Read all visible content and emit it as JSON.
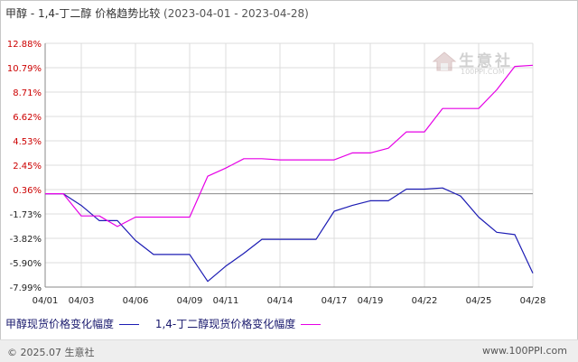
{
  "title": {
    "main": "甲醇 - 1,4-丁二醇 价格趋势比较",
    "dates": "(2023-04-01 - 2023-04-28)"
  },
  "chart_data": {
    "type": "line",
    "x": [
      "04/01",
      "04/02",
      "04/03",
      "04/04",
      "04/05",
      "04/06",
      "04/07",
      "04/08",
      "04/09",
      "04/10",
      "04/11",
      "04/12",
      "04/13",
      "04/14",
      "04/15",
      "04/16",
      "04/17",
      "04/18",
      "04/19",
      "04/20",
      "04/21",
      "04/22",
      "04/23",
      "04/24",
      "04/25",
      "04/26",
      "04/27",
      "04/28"
    ],
    "x_tick_labels": [
      "04/01",
      "04/03",
      "04/06",
      "04/09",
      "04/11",
      "04/14",
      "04/17",
      "04/19",
      "04/22",
      "04/25",
      "04/28"
    ],
    "y_tick_labels": [
      "12.88%",
      "10.79%",
      "8.71%",
      "6.62%",
      "4.53%",
      "2.45%",
      "0.36%",
      "-1.73%",
      "-3.82%",
      "-5.90%",
      "-7.99%"
    ],
    "ylim": [
      -7.99,
      12.88
    ],
    "grid": true,
    "legend_position": "bottom-left",
    "series": [
      {
        "name": "甲醇现货价格变化幅度",
        "color": "#1c1cb4",
        "values": [
          0,
          0,
          -1.0,
          -2.3,
          -2.3,
          -4.0,
          -5.2,
          -5.2,
          -5.2,
          -7.5,
          -6.2,
          -5.1,
          -3.9,
          -3.9,
          -3.9,
          -3.9,
          -1.5,
          -1.0,
          -0.6,
          -0.6,
          0.4,
          0.4,
          0.5,
          -0.2,
          -2.0,
          -3.3,
          -3.5,
          -6.8
        ]
      },
      {
        "name": "1,4-丁二醇现货价格变化幅度",
        "color": "#e600e6",
        "values": [
          0,
          0,
          -1.9,
          -1.9,
          -2.8,
          -2.0,
          -2.0,
          -2.0,
          -2.0,
          1.5,
          2.2,
          3.0,
          3.0,
          2.9,
          2.9,
          2.9,
          2.9,
          3.5,
          3.5,
          3.9,
          5.3,
          5.3,
          7.3,
          7.3,
          7.3,
          8.9,
          10.9,
          11.0
        ]
      }
    ]
  },
  "legend": {
    "series1": "甲醇现货价格变化幅度",
    "series2": "1,4-丁二醇现货价格变化幅度"
  },
  "watermark": {
    "name": "生意社",
    "url": "100PPI.COM"
  },
  "footer": {
    "copyright": "© 2025.07 生意社",
    "site": "www.100PPI.com"
  }
}
